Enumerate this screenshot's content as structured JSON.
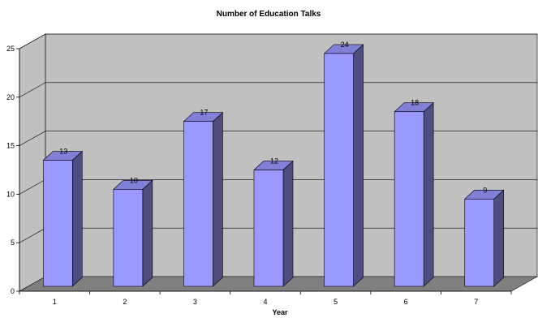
{
  "chart_data": {
    "type": "bar",
    "title": "Number of Education Talks",
    "xlabel": "Year",
    "ylabel": "",
    "categories": [
      "1",
      "2",
      "3",
      "4",
      "5",
      "6",
      "7"
    ],
    "values": [
      13,
      10,
      17,
      12,
      24,
      18,
      9
    ],
    "data_labels": [
      "13",
      "10",
      "17",
      "12",
      "24",
      "18",
      "9"
    ],
    "ylim": [
      0,
      25
    ],
    "yticks": [
      "0",
      "5",
      "10",
      "15",
      "20",
      "25"
    ],
    "grid": true,
    "legend": "none",
    "style": "3d-column",
    "colors": {
      "bar_front": "#9999ff",
      "bar_side": "#4d4d80",
      "bar_top": "#8080d8",
      "wall": "#c0c0c0",
      "floor": "#808080"
    }
  }
}
